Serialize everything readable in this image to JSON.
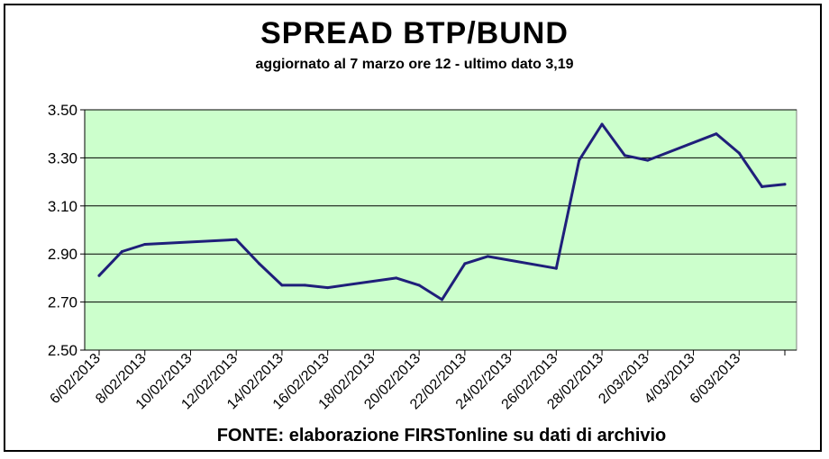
{
  "chart_data": {
    "type": "line",
    "title": "SPREAD  BTP/BUND",
    "subtitle": "aggiornato al 7 marzo ore 12 - ultimo dato 3,19",
    "source": "FONTE: elaborazione FIRSTonline su dati di archivio",
    "xlabel": "",
    "ylabel": "",
    "ylim": [
      2.5,
      3.5
    ],
    "y_ticks": [
      "3.50",
      "3.30",
      "3.10",
      "2.90",
      "2.70",
      "2.50"
    ],
    "x_tick_labels": [
      "6/02/2013",
      "8/02/2013",
      "10/02/2013",
      "12/02/2013",
      "14/02/2013",
      "16/02/2013",
      "18/02/2013",
      "20/02/2013",
      "22/02/2013",
      "24/02/2013",
      "26/02/2013",
      "28/02/2013",
      "2/03/2013",
      "4/03/2013",
      "6/03/2013"
    ],
    "x_start": "2013-02-05",
    "x_end": "2013-03-07",
    "grid": true,
    "series": [
      {
        "color": "#1f1f7a",
        "points": [
          [
            "2013-02-05",
            2.81
          ],
          [
            "2013-02-06",
            2.91
          ],
          [
            "2013-02-07",
            2.94
          ],
          [
            "2013-02-11",
            2.96
          ],
          [
            "2013-02-12",
            2.86
          ],
          [
            "2013-02-13",
            2.77
          ],
          [
            "2013-02-14",
            2.77
          ],
          [
            "2013-02-15",
            2.76
          ],
          [
            "2013-02-18",
            2.8
          ],
          [
            "2013-02-19",
            2.77
          ],
          [
            "2013-02-20",
            2.71
          ],
          [
            "2013-02-21",
            2.86
          ],
          [
            "2013-02-22",
            2.89
          ],
          [
            "2013-02-25",
            2.84
          ],
          [
            "2013-02-26",
            3.29
          ],
          [
            "2013-02-27",
            3.44
          ],
          [
            "2013-02-28",
            3.31
          ],
          [
            "2013-03-01",
            3.29
          ],
          [
            "2013-03-04",
            3.4
          ],
          [
            "2013-03-05",
            3.32
          ],
          [
            "2013-03-06",
            3.18
          ],
          [
            "2013-03-07",
            3.19
          ]
        ]
      }
    ],
    "colors": {
      "plot_background": "#ccffcc",
      "gridline": "#000000",
      "line": "#1f1f7a"
    }
  }
}
